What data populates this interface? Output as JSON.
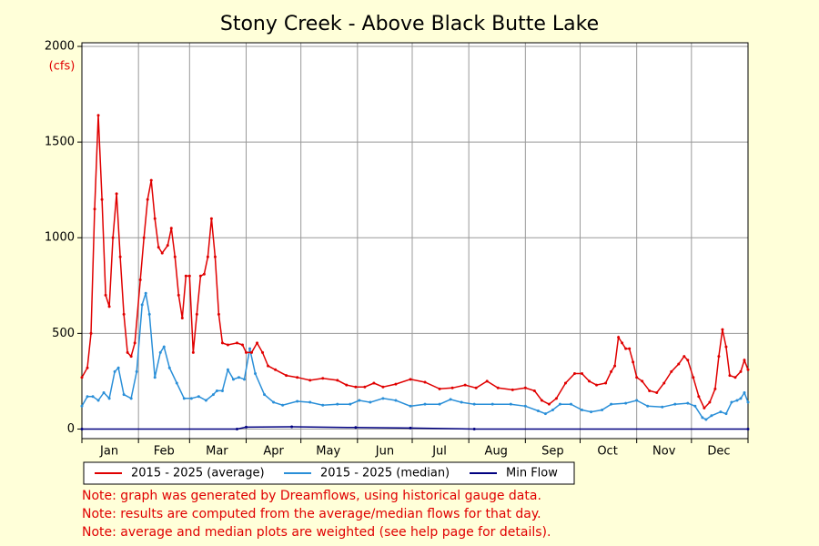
{
  "chart_data": {
    "type": "line",
    "title": "Stony Creek - Above Black Butte Lake",
    "y_unit": "(cfs)",
    "xlim": [
      0,
      365
    ],
    "month_starts": [
      0,
      31,
      59,
      90,
      120,
      151,
      181,
      212,
      243,
      273,
      304,
      334,
      365
    ],
    "xticks": [
      {
        "value": 15,
        "label": "Jan"
      },
      {
        "value": 45,
        "label": "Feb"
      },
      {
        "value": 74,
        "label": "Mar"
      },
      {
        "value": 105,
        "label": "Apr"
      },
      {
        "value": 135,
        "label": "May"
      },
      {
        "value": 166,
        "label": "Jun"
      },
      {
        "value": 196,
        "label": "Jul"
      },
      {
        "value": 227,
        "label": "Aug"
      },
      {
        "value": 258,
        "label": "Sep"
      },
      {
        "value": 288,
        "label": "Oct"
      },
      {
        "value": 319,
        "label": "Nov"
      },
      {
        "value": 349,
        "label": "Dec"
      }
    ],
    "ylim": [
      -50,
      2000
    ],
    "yticks": [
      0,
      500,
      1000,
      1500,
      2000
    ],
    "grid": true,
    "series": [
      {
        "name": "2015 - 2025 (average)",
        "color": "#e00000",
        "x": [
          0,
          3,
          5,
          7,
          9,
          11,
          13,
          15,
          17,
          19,
          21,
          23,
          25,
          27,
          29,
          32,
          34,
          36,
          38,
          40,
          42,
          44,
          47,
          49,
          51,
          53,
          55,
          57,
          59,
          61,
          63,
          65,
          67,
          69,
          71,
          73,
          75,
          77,
          80,
          85,
          88,
          90,
          93,
          96,
          99,
          102,
          106,
          112,
          118,
          125,
          132,
          140,
          145,
          150,
          155,
          160,
          165,
          172,
          180,
          188,
          196,
          203,
          210,
          216,
          222,
          228,
          236,
          243,
          248,
          252,
          256,
          260,
          265,
          270,
          274,
          278,
          282,
          287,
          290,
          292,
          294,
          296,
          298,
          300,
          302,
          304,
          307,
          311,
          315,
          319,
          323,
          327,
          330,
          332,
          335,
          338,
          341,
          344,
          347,
          349,
          351,
          353,
          355,
          358,
          361,
          363,
          365
        ],
        "values": [
          270,
          320,
          500,
          1150,
          1640,
          1200,
          700,
          640,
          1000,
          1230,
          900,
          600,
          400,
          380,
          450,
          780,
          1000,
          1200,
          1300,
          1100,
          950,
          920,
          960,
          1050,
          900,
          700,
          580,
          800,
          800,
          400,
          600,
          800,
          810,
          900,
          1100,
          900,
          600,
          450,
          440,
          450,
          440,
          400,
          400,
          450,
          400,
          330,
          310,
          280,
          270,
          255,
          265,
          255,
          230,
          220,
          220,
          240,
          220,
          235,
          260,
          245,
          210,
          215,
          230,
          215,
          250,
          215,
          205,
          215,
          200,
          150,
          130,
          160,
          240,
          290,
          290,
          250,
          230,
          240,
          300,
          330,
          480,
          450,
          420,
          420,
          350,
          270,
          250,
          200,
          190,
          240,
          300,
          340,
          380,
          360,
          270,
          170,
          110,
          140,
          210,
          380,
          520,
          430,
          280,
          270,
          300,
          360,
          310
        ]
      },
      {
        "name": "2015 - 2025 (median)",
        "color": "#2a8fd8",
        "x": [
          0,
          3,
          6,
          9,
          12,
          15,
          18,
          20,
          23,
          27,
          30,
          33,
          35,
          37,
          40,
          43,
          45,
          48,
          52,
          56,
          60,
          64,
          68,
          72,
          74,
          77,
          80,
          83,
          86,
          89,
          92,
          95,
          100,
          105,
          110,
          118,
          125,
          132,
          140,
          147,
          152,
          158,
          165,
          172,
          180,
          188,
          196,
          202,
          208,
          215,
          225,
          235,
          243,
          250,
          254,
          258,
          262,
          268,
          274,
          279,
          285,
          290,
          298,
          304,
          310,
          318,
          325,
          332,
          336,
          340,
          342,
          345,
          350,
          353,
          356,
          359,
          361,
          363,
          365
        ],
        "values": [
          120,
          170,
          170,
          150,
          190,
          160,
          300,
          320,
          180,
          160,
          300,
          650,
          710,
          600,
          270,
          400,
          430,
          320,
          240,
          160,
          160,
          170,
          150,
          180,
          200,
          200,
          310,
          260,
          270,
          260,
          420,
          290,
          180,
          140,
          125,
          145,
          140,
          125,
          130,
          130,
          150,
          140,
          160,
          150,
          120,
          130,
          130,
          155,
          140,
          130,
          130,
          130,
          120,
          95,
          80,
          100,
          130,
          130,
          100,
          90,
          100,
          130,
          135,
          150,
          120,
          115,
          130,
          135,
          120,
          60,
          50,
          70,
          90,
          80,
          140,
          150,
          160,
          190,
          140
        ]
      },
      {
        "name": "Min Flow",
        "color": "#000080",
        "x": [
          0,
          85,
          90,
          115,
          150,
          180,
          215,
          365
        ],
        "values": [
          0,
          0,
          10,
          12,
          8,
          5,
          0,
          0
        ]
      }
    ],
    "notes": [
      "Note: graph was generated by Dreamflows, using historical gauge data.",
      "Note: results are computed from the average/median flows for that day.",
      "Note: average and median plots are weighted (see help page for details)."
    ]
  }
}
